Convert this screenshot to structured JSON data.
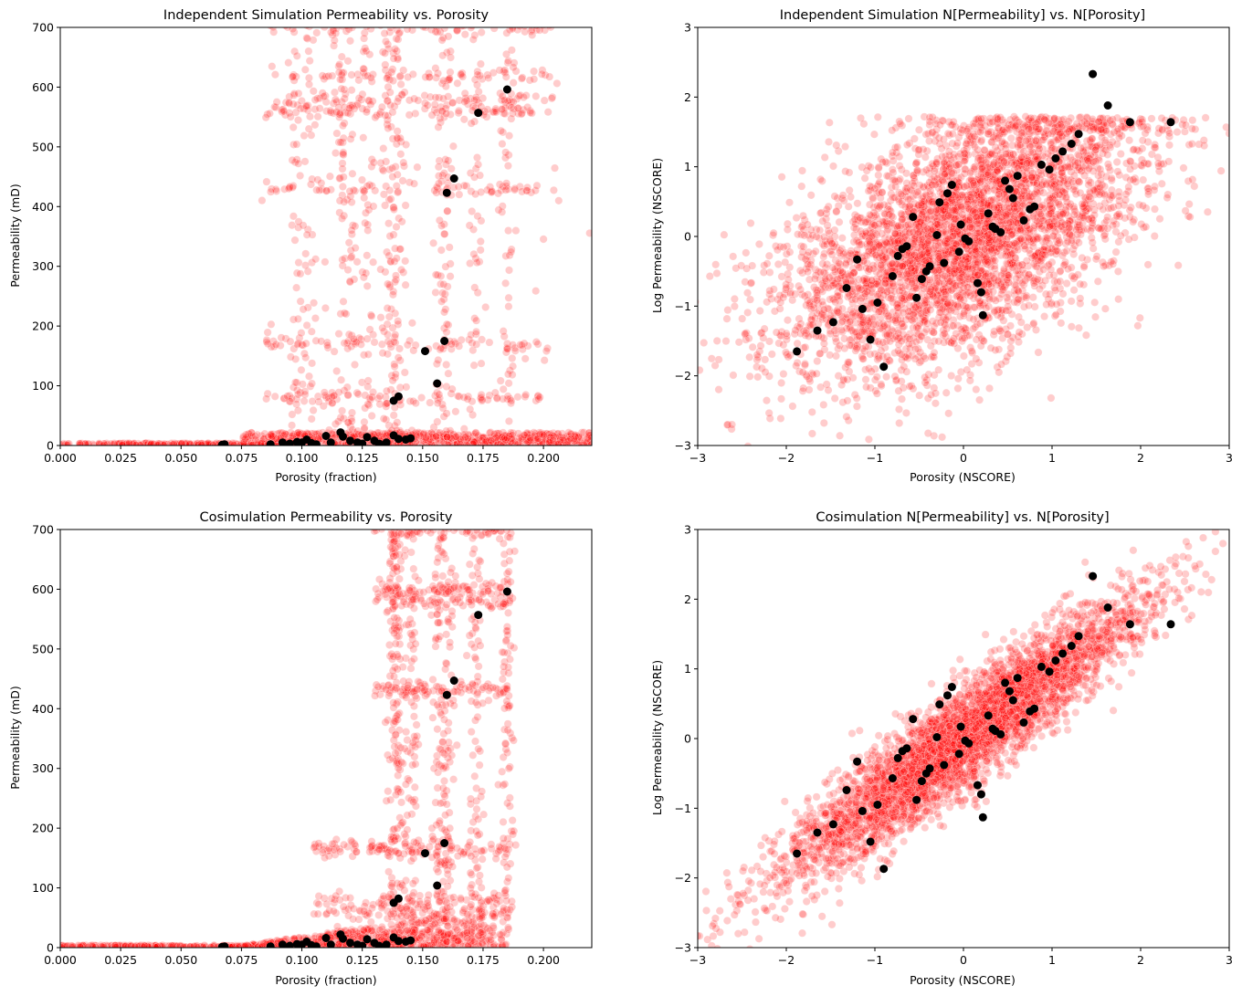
{
  "chart_data": [
    {
      "type": "scatter",
      "title": "Independent Simulation Permeability vs. Porosity",
      "xlabel": "Porosity (fraction)",
      "ylabel": "Permeability (mD)",
      "xlim": [
        0,
        0.22
      ],
      "ylim": [
        0,
        700
      ],
      "xticks": [
        0.0,
        0.025,
        0.05,
        0.075,
        0.1,
        0.125,
        0.15,
        0.175,
        0.2
      ],
      "xtick_labels": [
        "0.000",
        "0.025",
        "0.050",
        "0.075",
        "0.100",
        "0.125",
        "0.150",
        "0.175",
        "0.200"
      ],
      "yticks": [
        0,
        100,
        200,
        300,
        400,
        500,
        600,
        700
      ],
      "ytick_labels": [
        "0",
        "100",
        "200",
        "300",
        "400",
        "500",
        "600",
        "700"
      ],
      "grid": false,
      "series": [
        {
          "color": "#ff0000",
          "alpha": 0.2,
          "style": "cloud",
          "x": [
            0.0,
            0.02,
            0.04,
            0.06,
            0.065,
            0.075,
            0.085,
            0.095,
            0.1,
            0.105,
            0.11,
            0.115,
            0.12,
            0.125,
            0.13,
            0.135,
            0.14,
            0.145,
            0.15,
            0.155,
            0.16,
            0.165,
            0.17,
            0.175,
            0.18,
            0.185,
            0.19,
            0.2,
            0.21,
            0.22
          ],
          "y": [
            0,
            1,
            2,
            3,
            325,
            560,
            612,
            430,
            80,
            170,
            440,
            590,
            175,
            430,
            580,
            700,
            440,
            80,
            420,
            170,
            590,
            700,
            430,
            80,
            170,
            700,
            480,
            420,
            120,
            5
          ]
        },
        {
          "color": "#000000",
          "alpha": 1.0,
          "style": "well-data",
          "x": [
            0.067,
            0.068,
            0.087,
            0.092,
            0.095,
            0.098,
            0.1,
            0.102,
            0.104,
            0.106,
            0.11,
            0.112,
            0.116,
            0.117,
            0.12,
            0.123,
            0.125,
            0.127,
            0.13,
            0.132,
            0.135,
            0.138,
            0.14,
            0.143,
            0.145,
            0.138,
            0.14,
            0.151,
            0.156,
            0.159,
            0.16,
            0.163,
            0.173,
            0.185
          ],
          "y": [
            1,
            2,
            2,
            5,
            3,
            6,
            5,
            10,
            4,
            2,
            16,
            5,
            22,
            15,
            8,
            5,
            3,
            14,
            8,
            3,
            5,
            17,
            11,
            10,
            12,
            75,
            82,
            158,
            104,
            175,
            423,
            447,
            557,
            596
          ]
        }
      ]
    },
    {
      "type": "scatter",
      "title": "Independent Simulation N[Permeability] vs. N[Porosity]",
      "xlabel": "Porosity (NSCORE)",
      "ylabel": "Log Permeability (NSCORE)",
      "xlim": [
        -3,
        3
      ],
      "ylim": [
        -3,
        3
      ],
      "xticks": [
        -3,
        -2,
        -1,
        0,
        1,
        2,
        3
      ],
      "xtick_labels": [
        "−3",
        "−2",
        "−1",
        "0",
        "1",
        "2",
        "3"
      ],
      "yticks": [
        -3,
        -2,
        -1,
        0,
        1,
        2,
        3
      ],
      "ytick_labels": [
        "−3",
        "−2",
        "−1",
        "0",
        "1",
        "2",
        "3"
      ],
      "grid": false,
      "series": [
        {
          "color": "#ff0000",
          "alpha": 0.2,
          "style": "cloud",
          "correlation": 0.55,
          "x": [
            -2.5,
            -2.0,
            -1.5,
            -1.0,
            -0.5,
            0.0,
            0.5,
            1.0,
            1.5,
            2.0,
            2.5,
            3.0
          ],
          "y": [
            -1.4,
            -0.9,
            -1.0,
            -0.6,
            -0.3,
            0.0,
            0.3,
            0.6,
            0.8,
            1.0,
            1.1,
            0.4
          ]
        },
        {
          "color": "#000000",
          "alpha": 1.0,
          "style": "well-data",
          "x": [
            -1.88,
            -1.65,
            -1.47,
            -1.32,
            -1.2,
            -1.14,
            -1.05,
            -0.97,
            -0.9,
            -0.8,
            -0.74,
            -0.69,
            -0.64,
            -0.57,
            -0.53,
            -0.47,
            -0.42,
            -0.38,
            -0.3,
            -0.27,
            -0.22,
            -0.18,
            -0.13,
            -0.05,
            -0.03,
            0.02,
            0.06,
            0.16,
            0.2,
            0.22,
            0.28,
            0.33,
            0.36,
            0.42,
            0.47,
            0.52,
            0.56,
            0.61,
            0.68,
            0.75,
            0.8,
            0.88,
            0.97,
            1.04,
            1.12,
            1.22,
            1.3,
            1.46,
            1.63,
            1.88,
            2.34
          ],
          "y": [
            -1.65,
            -1.35,
            -1.23,
            -0.74,
            -0.33,
            -1.04,
            -1.48,
            -0.95,
            -1.87,
            -0.57,
            -0.28,
            -0.18,
            -0.14,
            0.28,
            -0.88,
            -0.61,
            -0.5,
            -0.43,
            0.02,
            0.49,
            -0.38,
            0.62,
            0.74,
            -0.22,
            0.17,
            -0.03,
            -0.07,
            -0.67,
            -0.8,
            -1.13,
            0.33,
            0.14,
            0.11,
            0.06,
            0.8,
            0.68,
            0.55,
            0.87,
            0.23,
            0.39,
            0.43,
            1.03,
            0.96,
            1.12,
            1.22,
            1.33,
            1.47,
            2.33,
            1.88,
            1.64,
            1.64
          ]
        }
      ]
    },
    {
      "type": "scatter",
      "title": "Cosimulation Permeability vs. Porosity",
      "xlabel": "Porosity (fraction)",
      "ylabel": "Permeability (mD)",
      "xlim": [
        0,
        0.22
      ],
      "ylim": [
        0,
        700
      ],
      "xticks": [
        0.0,
        0.025,
        0.05,
        0.075,
        0.1,
        0.125,
        0.15,
        0.175,
        0.2
      ],
      "xtick_labels": [
        "0.000",
        "0.025",
        "0.050",
        "0.075",
        "0.100",
        "0.125",
        "0.150",
        "0.175",
        "0.200"
      ],
      "yticks": [
        0,
        100,
        200,
        300,
        400,
        500,
        600,
        700
      ],
      "ytick_labels": [
        "0",
        "100",
        "200",
        "300",
        "400",
        "500",
        "600",
        "700"
      ],
      "grid": false,
      "series": [
        {
          "color": "#ff0000",
          "alpha": 0.2,
          "style": "cloud",
          "x": [
            0.0,
            0.02,
            0.04,
            0.06,
            0.075,
            0.09,
            0.1,
            0.105,
            0.11,
            0.115,
            0.12,
            0.125,
            0.13,
            0.135,
            0.14,
            0.145,
            0.15,
            0.155,
            0.16,
            0.165,
            0.17,
            0.175,
            0.185
          ],
          "y": [
            0,
            1,
            1,
            2,
            3,
            6,
            20,
            60,
            90,
            160,
            80,
            170,
            430,
            560,
            600,
            440,
            700,
            580,
            700,
            430,
            560,
            600,
            700
          ]
        },
        {
          "color": "#000000",
          "alpha": 1.0,
          "style": "well-data",
          "x": [
            0.067,
            0.068,
            0.087,
            0.092,
            0.095,
            0.098,
            0.1,
            0.102,
            0.104,
            0.106,
            0.11,
            0.112,
            0.116,
            0.117,
            0.12,
            0.123,
            0.125,
            0.127,
            0.13,
            0.132,
            0.135,
            0.138,
            0.14,
            0.143,
            0.145,
            0.138,
            0.14,
            0.151,
            0.156,
            0.159,
            0.16,
            0.163,
            0.173,
            0.185
          ],
          "y": [
            1,
            2,
            2,
            5,
            3,
            6,
            5,
            10,
            4,
            2,
            16,
            5,
            22,
            15,
            8,
            5,
            3,
            14,
            8,
            3,
            5,
            17,
            11,
            10,
            12,
            75,
            82,
            158,
            104,
            175,
            423,
            447,
            557,
            596
          ]
        }
      ]
    },
    {
      "type": "scatter",
      "title": "Cosimulation N[Permeability] vs. N[Porosity]",
      "xlabel": "Porosity (NSCORE)",
      "ylabel": "Log Permeability (NSCORE)",
      "xlim": [
        -3,
        3
      ],
      "ylim": [
        -3,
        3
      ],
      "xticks": [
        -3,
        -2,
        -1,
        0,
        1,
        2,
        3
      ],
      "xtick_labels": [
        "−3",
        "−2",
        "−1",
        "0",
        "1",
        "2",
        "3"
      ],
      "yticks": [
        -3,
        -2,
        -1,
        0,
        1,
        2,
        3
      ],
      "ytick_labels": [
        "−3",
        "−2",
        "−1",
        "0",
        "1",
        "2",
        "3"
      ],
      "grid": false,
      "series": [
        {
          "color": "#ff0000",
          "alpha": 0.2,
          "style": "cloud",
          "correlation": 0.93,
          "x": [
            -3.0,
            -2.5,
            -2.0,
            -1.5,
            -1.0,
            -0.5,
            0.0,
            0.5,
            1.0,
            1.5,
            2.0,
            2.5,
            3.0
          ],
          "y": [
            -2.9,
            -2.3,
            -1.9,
            -1.4,
            -1.0,
            -0.5,
            0.0,
            0.5,
            0.9,
            1.4,
            1.9,
            2.4,
            2.7
          ]
        },
        {
          "color": "#000000",
          "alpha": 1.0,
          "style": "well-data",
          "x": [
            -1.88,
            -1.65,
            -1.47,
            -1.32,
            -1.2,
            -1.14,
            -1.05,
            -0.97,
            -0.9,
            -0.8,
            -0.74,
            -0.69,
            -0.64,
            -0.57,
            -0.53,
            -0.47,
            -0.42,
            -0.38,
            -0.3,
            -0.27,
            -0.22,
            -0.18,
            -0.13,
            -0.05,
            -0.03,
            0.02,
            0.06,
            0.16,
            0.2,
            0.22,
            0.28,
            0.33,
            0.36,
            0.42,
            0.47,
            0.52,
            0.56,
            0.61,
            0.68,
            0.75,
            0.8,
            0.88,
            0.97,
            1.04,
            1.12,
            1.22,
            1.3,
            1.46,
            1.63,
            1.88,
            2.34
          ],
          "y": [
            -1.65,
            -1.35,
            -1.23,
            -0.74,
            -0.33,
            -1.04,
            -1.48,
            -0.95,
            -1.87,
            -0.57,
            -0.28,
            -0.18,
            -0.14,
            0.28,
            -0.88,
            -0.61,
            -0.5,
            -0.43,
            0.02,
            0.49,
            -0.38,
            0.62,
            0.74,
            -0.22,
            0.17,
            -0.03,
            -0.07,
            -0.67,
            -0.8,
            -1.13,
            0.33,
            0.14,
            0.11,
            0.06,
            0.8,
            0.68,
            0.55,
            0.87,
            0.23,
            0.39,
            0.43,
            1.03,
            0.96,
            1.12,
            1.22,
            1.33,
            1.47,
            2.33,
            1.88,
            1.64,
            1.64
          ]
        }
      ]
    }
  ]
}
